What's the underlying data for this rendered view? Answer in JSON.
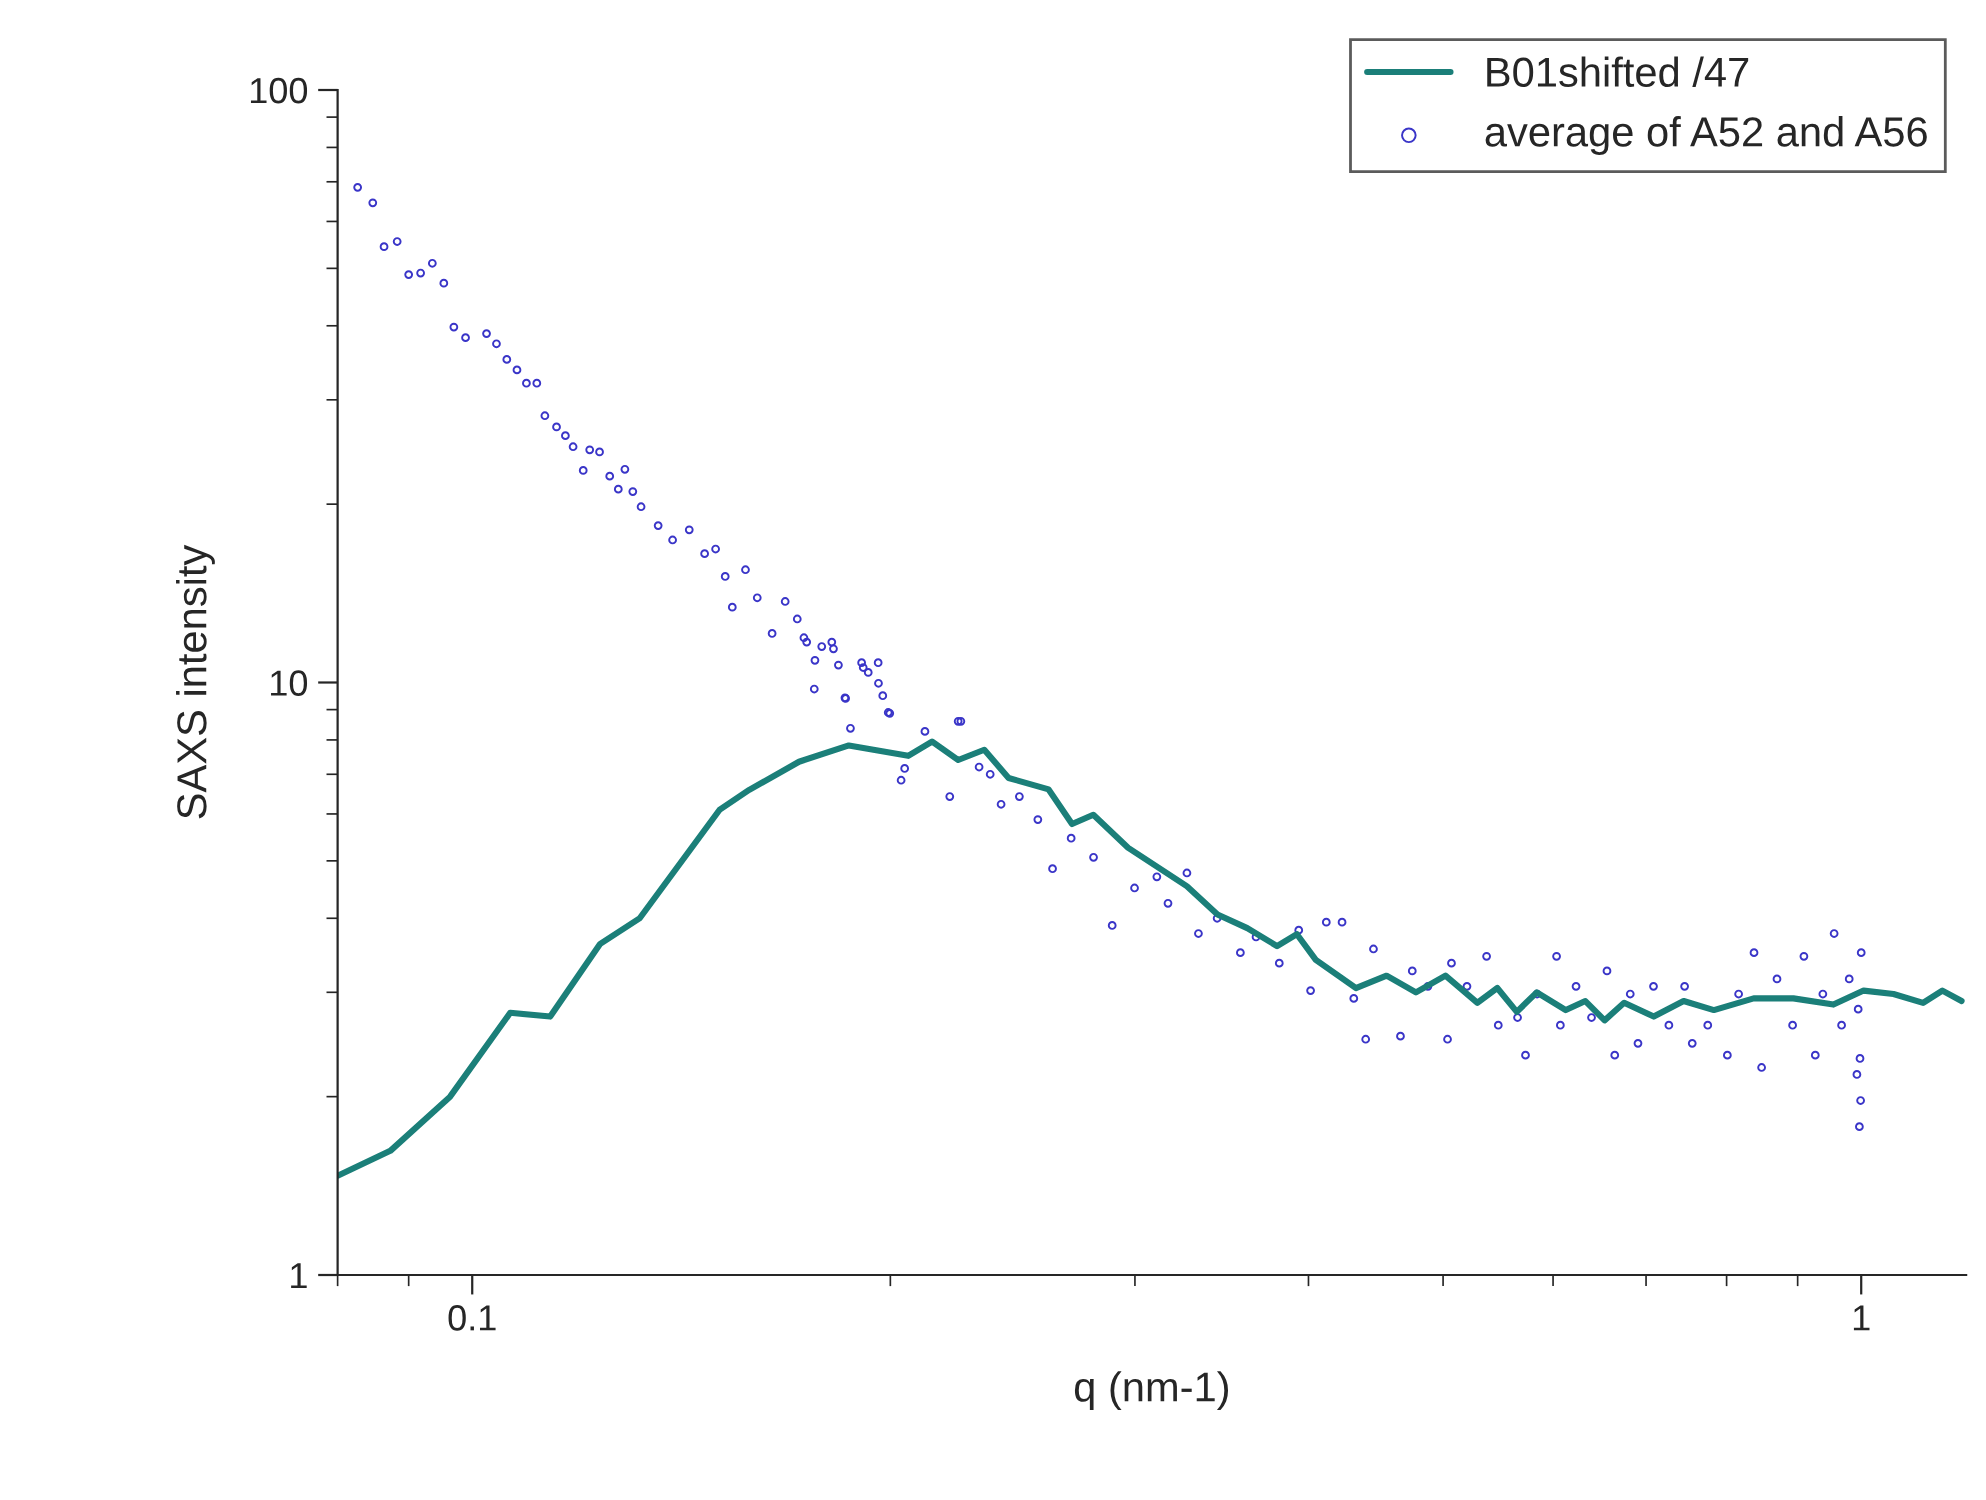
{
  "chart_data": {
    "type": "line",
    "xlabel": "q (nm-1)",
    "ylabel": "SAXS intensity",
    "log": "xy",
    "xlim": [
      0.08,
      1.19
    ],
    "ylim": [
      1,
      100
    ],
    "xticks": [
      {
        "value": 0.1,
        "label": "0.1"
      },
      1
    ],
    "yticks": [
      1,
      10,
      100
    ],
    "grid": false,
    "legend": "top right",
    "series": [
      {
        "name": "B01shifted /47",
        "color": "#1b7f79",
        "line_style": "solid",
        "marker": "none",
        "x": [
          0.08,
          0.0873,
          0.0964,
          0.1065,
          0.1138,
          0.1236,
          0.132,
          0.1507,
          0.1583,
          0.1719,
          0.1867,
          0.206,
          0.2143,
          0.2238,
          0.2337,
          0.2433,
          0.26,
          0.2703,
          0.28,
          0.2966,
          0.327,
          0.344,
          0.3614,
          0.3797,
          0.3924,
          0.405,
          0.4327,
          0.4553,
          0.478,
          0.502,
          0.5293,
          0.547,
          0.565,
          0.584,
          0.6128,
          0.633,
          0.6535,
          0.675,
          0.709,
          0.745,
          0.7833,
          0.8367,
          0.8937,
          0.955,
          1.004,
          1.055,
          1.108,
          1.144,
          1.181
        ],
        "values": [
          1.47,
          1.62,
          2.0,
          2.77,
          2.73,
          3.62,
          4.0,
          6.1,
          6.59,
          7.35,
          7.83,
          7.52,
          7.95,
          7.4,
          7.7,
          6.9,
          6.6,
          5.77,
          5.98,
          5.26,
          4.53,
          4.06,
          3.85,
          3.59,
          3.76,
          3.4,
          3.05,
          3.2,
          3.0,
          3.2,
          2.88,
          3.05,
          2.78,
          3.0,
          2.8,
          2.9,
          2.69,
          2.88,
          2.73,
          2.9,
          2.8,
          2.93,
          2.93,
          2.86,
          3.02,
          2.98,
          2.88,
          3.02,
          2.9
        ]
      },
      {
        "name": "average of A52 and A56",
        "type": "scatter",
        "color": "#3a35c8",
        "marker": "circle",
        "x": [
          0.0827,
          0.0848,
          0.0864,
          0.0883,
          0.09,
          0.0918,
          0.0936,
          0.0954,
          0.097,
          0.0989,
          0.1024,
          0.1041,
          0.1059,
          0.1077,
          0.1094,
          0.1113,
          0.1128,
          0.115,
          0.1167,
          0.1182,
          0.1202,
          0.1215,
          0.1235,
          0.1256,
          0.1274,
          0.1288,
          0.1305,
          0.1323,
          0.1361,
          0.1394,
          0.1433,
          0.147,
          0.1497,
          0.1521,
          0.1539,
          0.1573,
          0.1604,
          0.1644,
          0.168,
          0.1714,
          0.1733,
          0.1765,
          0.1785,
          0.1815,
          0.1835,
          0.1855,
          0.1872,
          0.1907,
          0.1928,
          0.196,
          0.1975,
          0.1993,
          0.2118,
          0.2238,
          0.2048,
          0.2317,
          0.1741,
          0.182,
          0.1763,
          0.1857,
          0.1912,
          0.1961,
          0.1998,
          0.2036,
          0.2207,
          0.2248,
          0.236,
          0.2403,
          0.2477,
          0.2554,
          0.2617,
          0.2699,
          0.2801,
          0.2889,
          0.2998,
          0.3111,
          0.3169,
          0.327,
          0.3333,
          0.3438,
          0.3573,
          0.3667,
          0.3811,
          0.3936,
          0.4014,
          0.412,
          0.4229,
          0.4312,
          0.4398,
          0.4455,
          0.4659,
          0.4751,
          0.4876,
          0.5037,
          0.507,
          0.5202,
          0.5374,
          0.5479,
          0.5657,
          0.5732,
          0.5843,
          0.6035,
          0.6073,
          0.6233,
          0.6395,
          0.6561,
          0.6646,
          0.6819,
          0.6907,
          0.7087,
          0.727,
          0.7462,
          0.7557,
          0.7754,
          0.801,
          0.8161,
          0.8372,
          0.8478,
          0.8697,
          0.8925,
          0.9094,
          0.9267,
          0.9384,
          0.9561,
          0.968,
          0.9803,
          0.9929,
          0.995,
          0.998,
          1.0,
          0.999,
          0.997
        ],
        "values": [
          68.5,
          64.5,
          54.4,
          55.5,
          48.8,
          49.1,
          51.0,
          47.2,
          39.8,
          38.2,
          38.8,
          37.3,
          35.1,
          33.7,
          32.0,
          32.0,
          28.2,
          27.0,
          26.1,
          25.0,
          22.8,
          24.7,
          24.5,
          22.3,
          21.2,
          22.9,
          21.0,
          19.8,
          18.4,
          17.4,
          18.1,
          16.5,
          16.8,
          15.1,
          13.4,
          15.5,
          13.9,
          12.1,
          13.7,
          12.8,
          11.9,
          10.9,
          11.5,
          11.7,
          10.7,
          9.42,
          8.37,
          10.8,
          10.4,
          10.8,
          9.5,
          8.9,
          8.27,
          8.6,
          7.16,
          7.2,
          11.7,
          11.4,
          9.75,
          9.4,
          10.6,
          9.97,
          8.87,
          6.84,
          6.42,
          8.6,
          7.0,
          6.23,
          6.42,
          5.87,
          4.85,
          5.46,
          5.07,
          3.89,
          4.5,
          4.7,
          4.24,
          4.77,
          3.77,
          4.0,
          3.5,
          3.72,
          3.36,
          3.82,
          3.02,
          3.94,
          3.94,
          2.93,
          2.5,
          3.55,
          2.53,
          3.26,
          3.07,
          2.5,
          3.36,
          3.07,
          3.45,
          2.64,
          2.72,
          2.35,
          2.98,
          3.45,
          2.64,
          3.07,
          2.72,
          3.26,
          2.35,
          2.98,
          2.46,
          3.07,
          2.64,
          3.07,
          2.46,
          2.64,
          2.35,
          2.98,
          3.5,
          2.24,
          3.16,
          2.64,
          3.45,
          2.35,
          2.98,
          3.77,
          2.64,
          3.16,
          2.18,
          2.81,
          2.32,
          3.5,
          1.97,
          1.78
        ]
      }
    ]
  }
}
